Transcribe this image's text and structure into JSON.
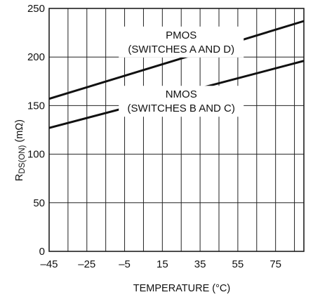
{
  "chart_data": {
    "type": "line",
    "title": "",
    "xlabel": "TEMPERATURE (°C)",
    "ylabel": {
      "main": "R",
      "subscript": "DS(ON)",
      "unit": " (mΩ)"
    },
    "xlim": [
      -45,
      90
    ],
    "ylim": [
      0,
      250
    ],
    "x_ticks": [
      -45,
      -25,
      -5,
      15,
      35,
      55,
      75
    ],
    "x_tick_labels": [
      "–45",
      "–25",
      "–5",
      "15",
      "35",
      "55",
      "75"
    ],
    "y_ticks": [
      0,
      50,
      100,
      150,
      200,
      250
    ],
    "y_tick_labels": [
      "0",
      "50",
      "100",
      "150",
      "200",
      "250"
    ],
    "grid": true,
    "series": [
      {
        "name": "PMOS",
        "x": [
          -45,
          90
        ],
        "y": [
          157,
          237
        ]
      },
      {
        "name": "NMOS",
        "x": [
          -45,
          90
        ],
        "y": [
          127,
          196
        ]
      }
    ],
    "annotations": [
      {
        "lines": [
          "PMOS",
          "(SWITCHES A AND D)"
        ],
        "x": 25,
        "y": 214
      },
      {
        "lines": [
          "NMOS",
          "(SWITCHES B AND C)"
        ],
        "x": 25,
        "y": 153
      }
    ],
    "colors": {
      "line": "#111111",
      "grid": "#222222",
      "background": "#ffffff"
    }
  }
}
